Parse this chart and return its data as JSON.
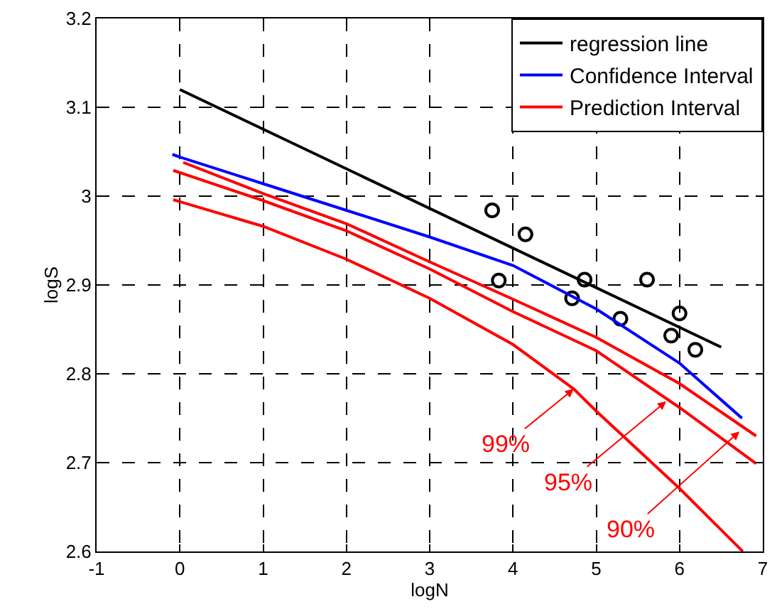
{
  "chart_data": {
    "type": "line",
    "xlabel": "logN",
    "ylabel": "logS",
    "xlim": [
      -1,
      7
    ],
    "ylim": [
      2.6,
      3.2
    ],
    "xticks": [
      -1,
      0,
      1,
      2,
      3,
      4,
      5,
      6,
      7
    ],
    "yticks": [
      2.6,
      2.7,
      2.8,
      2.9,
      3,
      3.1,
      3.2
    ],
    "grid": true,
    "legend": "top right",
    "series": [
      {
        "type": "scatter",
        "marker": "circle",
        "color": "#000000",
        "x": [
          3.75,
          4.15,
          3.83,
          4.86,
          4.71,
          5.61,
          5.29,
          6.0,
          5.9,
          6.19
        ],
        "values": [
          2.984,
          2.957,
          2.905,
          2.906,
          2.885,
          2.906,
          2.862,
          2.868,
          2.843,
          2.827
        ]
      },
      {
        "name": "regression line",
        "color": "#000000",
        "marker": "none",
        "x": [
          0,
          6.5
        ],
        "values": [
          3.12,
          2.83
        ]
      },
      {
        "name": "Confidence Interval",
        "color": "#0000ff",
        "marker": "none",
        "x": [
          -0.09,
          0,
          1,
          2,
          3,
          4,
          5,
          6,
          6.75
        ],
        "values": [
          3.047,
          3.044,
          3.014,
          2.984,
          2.954,
          2.922,
          2.873,
          2.812,
          2.75
        ]
      },
      {
        "name": "Prediction Interval",
        "color": "#ff0000",
        "marker": "none",
        "x": [
          0.04,
          1,
          2,
          3,
          4,
          5,
          6,
          6.92
        ],
        "values": [
          3.038,
          3.003,
          2.969,
          2.926,
          2.884,
          2.841,
          2.789,
          2.73
        ]
      },
      {
        "color": "#ff0000",
        "marker": "none",
        "x": [
          -0.08,
          1,
          2,
          3,
          4,
          5,
          6,
          6.92
        ],
        "values": [
          3.029,
          2.995,
          2.961,
          2.918,
          2.87,
          2.826,
          2.762,
          2.699
        ]
      },
      {
        "color": "#ff0000",
        "marker": "none",
        "x": [
          -0.08,
          1,
          2,
          3,
          4,
          4.73,
          5,
          6,
          6.76
        ],
        "values": [
          2.996,
          2.966,
          2.929,
          2.885,
          2.833,
          2.783,
          2.758,
          2.671,
          2.6
        ]
      }
    ],
    "annotations": [
      {
        "text": "99%",
        "x": 4.73,
        "y": 2.783
      },
      {
        "text": "95%",
        "x": 5.84,
        "y": 2.769
      },
      {
        "text": "90%",
        "x": 6.72,
        "y": 2.735
      }
    ]
  }
}
